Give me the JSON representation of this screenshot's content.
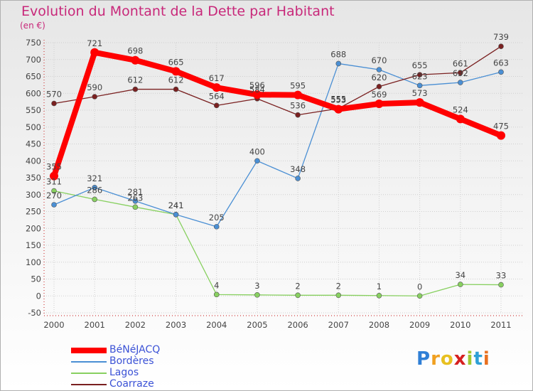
{
  "chart_data": {
    "type": "line",
    "title": "Evolution du Montant de la Dette par Habitant",
    "ylabel": "(en €)",
    "xlabel": "",
    "categories": [
      "2000",
      "2001",
      "2002",
      "2003",
      "2004",
      "2005",
      "2006",
      "2007",
      "2008",
      "2009",
      "2010",
      "2011"
    ],
    "ylim": [
      -50,
      750
    ],
    "yticks": [
      -50,
      0,
      50,
      100,
      150,
      200,
      250,
      300,
      350,
      400,
      450,
      500,
      550,
      600,
      650,
      700,
      750
    ],
    "grid": true,
    "legend_position": "bottom-left",
    "series": [
      {
        "name": "BéNéJACQ",
        "color": "#ff0000",
        "values": [
          355,
          721,
          698,
          665,
          617,
          596,
          595,
          553,
          569,
          573,
          524,
          475
        ]
      },
      {
        "name": "Bordères",
        "color": "#4a8fd4",
        "values": [
          270,
          321,
          281,
          241,
          205,
          400,
          348,
          688,
          670,
          623,
          632,
          663
        ]
      },
      {
        "name": "Lagos",
        "color": "#88d060",
        "values": [
          311,
          286,
          263,
          241,
          4,
          3,
          2,
          2,
          1,
          0,
          34,
          33
        ]
      },
      {
        "name": "Coarraze",
        "color": "#7a2020",
        "values": [
          570,
          590,
          612,
          612,
          564,
          584,
          536,
          555,
          620,
          655,
          661,
          739
        ]
      }
    ]
  },
  "brand": {
    "letters": [
      "P",
      "r",
      "o",
      "x",
      "i",
      "t",
      "i"
    ],
    "colors": [
      "#2f7fd6",
      "#f0a020",
      "#e8c020",
      "#d62020",
      "#a0c830",
      "#2fa0d6",
      "#e87020"
    ]
  }
}
